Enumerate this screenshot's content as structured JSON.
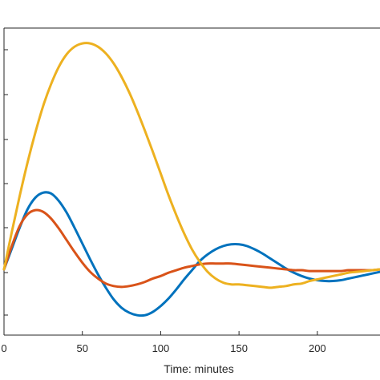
{
  "chart_data": {
    "type": "line",
    "title": "",
    "xlabel": "Time: minutes",
    "ylabel": "",
    "xlim": [
      0,
      240
    ],
    "x_ticks": [
      0,
      50,
      100,
      150,
      200
    ],
    "x_tick_labels": [
      "0",
      "50",
      "100",
      "150",
      "200"
    ],
    "grid": false,
    "legend": "none",
    "series": [
      {
        "color": "#0072BD",
        "x": [
          0,
          5,
          10,
          15,
          20,
          25,
          30,
          35,
          40,
          45,
          50,
          55,
          60,
          65,
          70,
          75,
          80,
          85,
          90,
          95,
          100,
          105,
          110,
          115,
          120,
          125,
          130,
          135,
          140,
          145,
          150,
          155,
          160,
          165,
          170,
          175,
          180,
          185,
          190,
          195,
          200,
          205,
          210,
          215,
          220,
          225,
          230,
          235,
          240
        ],
        "y": [
          0,
          0.25,
          0.5,
          0.72,
          0.86,
          0.92,
          0.91,
          0.82,
          0.68,
          0.5,
          0.31,
          0.12,
          -0.06,
          -0.22,
          -0.36,
          -0.46,
          -0.52,
          -0.55,
          -0.55,
          -0.51,
          -0.44,
          -0.35,
          -0.24,
          -0.12,
          -0.01,
          0.1,
          0.18,
          0.24,
          0.28,
          0.3,
          0.3,
          0.28,
          0.24,
          0.19,
          0.13,
          0.07,
          0.01,
          -0.04,
          -0.08,
          -0.11,
          -0.13,
          -0.14,
          -0.14,
          -0.13,
          -0.11,
          -0.09,
          -0.07,
          -0.05,
          -0.03
        ]
      },
      {
        "color": "#D95319",
        "x": [
          0,
          5,
          10,
          15,
          20,
          25,
          30,
          35,
          40,
          45,
          50,
          55,
          60,
          65,
          70,
          75,
          80,
          85,
          90,
          95,
          100,
          105,
          110,
          115,
          120,
          125,
          130,
          135,
          140,
          145,
          150,
          155,
          160,
          165,
          170,
          175,
          180,
          185,
          190,
          195,
          200,
          205,
          210,
          215,
          220,
          225,
          230,
          235,
          240
        ],
        "y": [
          0,
          0.28,
          0.52,
          0.66,
          0.71,
          0.69,
          0.61,
          0.49,
          0.35,
          0.21,
          0.08,
          -0.03,
          -0.11,
          -0.17,
          -0.2,
          -0.21,
          -0.2,
          -0.18,
          -0.15,
          -0.11,
          -0.08,
          -0.04,
          -0.01,
          0.02,
          0.04,
          0.06,
          0.07,
          0.07,
          0.07,
          0.07,
          0.06,
          0.05,
          0.04,
          0.03,
          0.02,
          0.01,
          0.0,
          -0.01,
          -0.01,
          -0.02,
          -0.02,
          -0.02,
          -0.02,
          -0.02,
          -0.01,
          -0.01,
          -0.01,
          -0.01,
          0.0
        ]
      },
      {
        "color": "#EDB120",
        "x": [
          0,
          5,
          10,
          15,
          20,
          25,
          30,
          35,
          40,
          45,
          50,
          55,
          60,
          65,
          70,
          75,
          80,
          85,
          90,
          95,
          100,
          105,
          110,
          115,
          120,
          125,
          130,
          135,
          140,
          145,
          150,
          155,
          160,
          165,
          170,
          175,
          180,
          185,
          190,
          195,
          200,
          205,
          210,
          215,
          220,
          225,
          230,
          235,
          240
        ],
        "y": [
          0,
          0.45,
          0.88,
          1.28,
          1.64,
          1.96,
          2.22,
          2.43,
          2.58,
          2.67,
          2.71,
          2.71,
          2.67,
          2.59,
          2.47,
          2.31,
          2.12,
          1.9,
          1.66,
          1.41,
          1.15,
          0.89,
          0.65,
          0.43,
          0.24,
          0.09,
          -0.03,
          -0.11,
          -0.16,
          -0.18,
          -0.18,
          -0.19,
          -0.2,
          -0.21,
          -0.22,
          -0.21,
          -0.2,
          -0.18,
          -0.17,
          -0.14,
          -0.12,
          -0.1,
          -0.08,
          -0.06,
          -0.04,
          -0.03,
          -0.02,
          -0.01,
          0.0
        ]
      }
    ]
  }
}
